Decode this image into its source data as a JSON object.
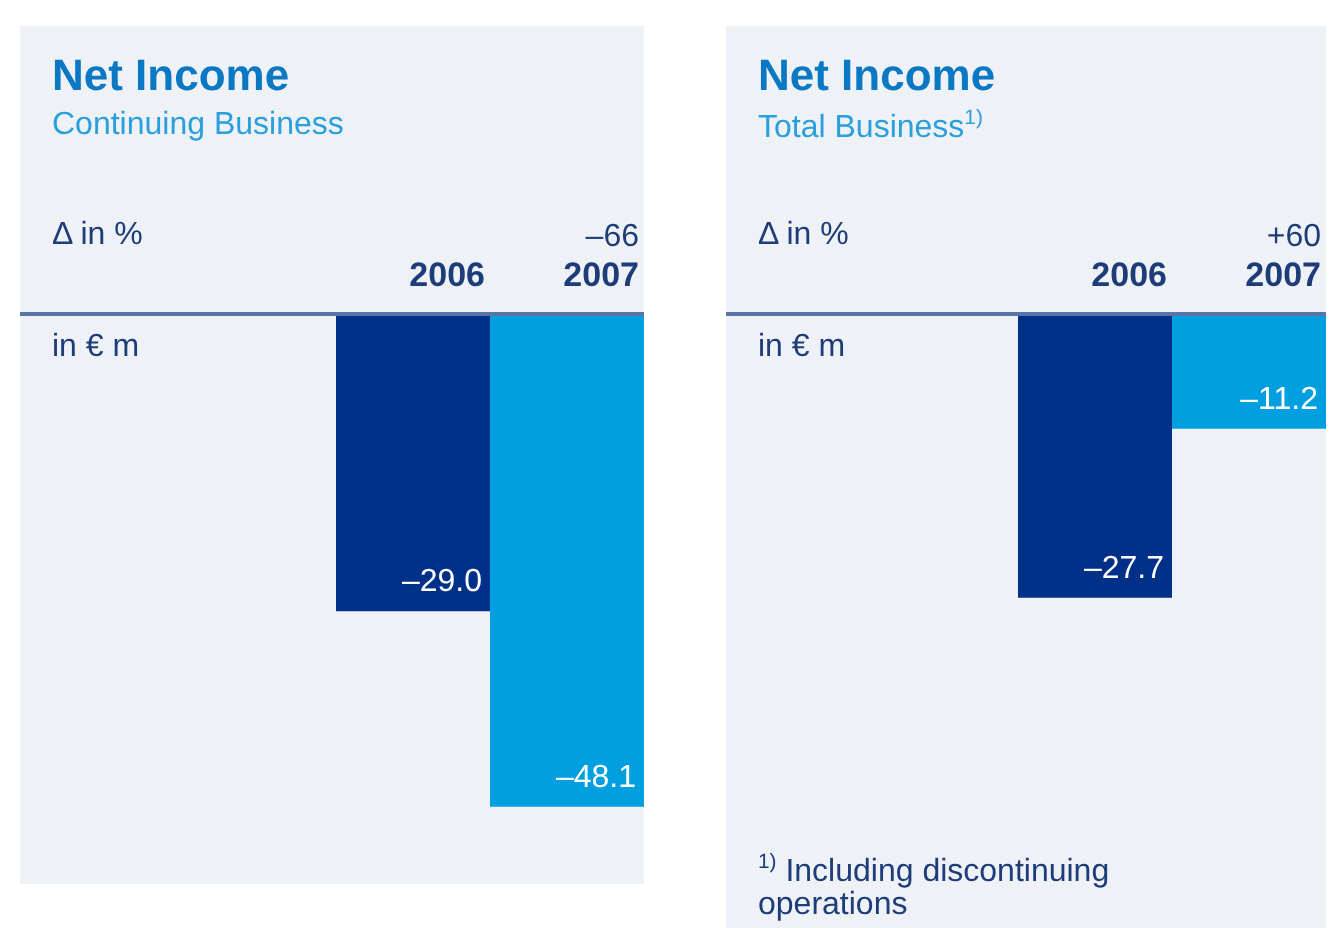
{
  "chart_data": [
    {
      "type": "bar",
      "title": "Net Income",
      "subtitle": "Continuing Business",
      "categories": [
        "2006",
        "2007"
      ],
      "values": [
        -29.0,
        -48.1
      ],
      "colors": [
        "#003087",
        "#009fdf"
      ],
      "value_labels": [
        "–29.0",
        "–48.1"
      ],
      "annotations": [
        "Δ in %",
        "–66",
        "in € m"
      ],
      "grid": false,
      "legend": false
    },
    {
      "type": "bar",
      "title": "Net Income",
      "subtitle": "Total Business$^{1)}$",
      "categories": [
        "2006",
        "2007"
      ],
      "values": [
        -27.7,
        -11.2
      ],
      "colors": [
        "#003087",
        "#009fdf"
      ],
      "value_labels": [
        "–27.7",
        "–11.2"
      ],
      "annotations": [
        "Δ in %",
        "+60",
        "in € m",
        "$^{1)}$ Including discontinuing operations"
      ],
      "grid": false,
      "legend": false
    }
  ]
}
